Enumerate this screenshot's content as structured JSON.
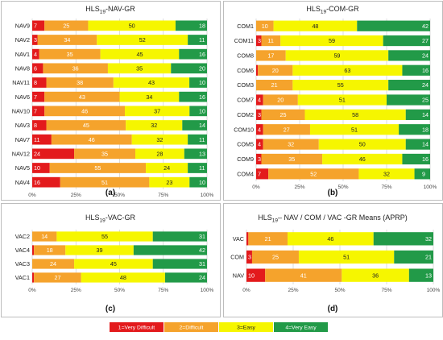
{
  "colors": {
    "very_difficult": "#e31a1c",
    "difficult": "#f5a32c",
    "easy": "#f6f600",
    "very_easy": "#229a48",
    "panel_border": "#bdbdbd",
    "grid": "#cfcfcf"
  },
  "legend": {
    "items": [
      {
        "label": "1=Very Difficult",
        "key": "very_difficult"
      },
      {
        "label": "2=Difficult",
        "key": "difficult"
      },
      {
        "label": "3=Easy",
        "key": "easy"
      },
      {
        "label": "4=Very Easy",
        "key": "very_easy"
      }
    ]
  },
  "chart_data": [
    {
      "type": "bar",
      "stacked": "horizontal-100%",
      "panel_letter": "(a)",
      "title_parts": [
        "HLS",
        "19",
        "-NAV-GR"
      ],
      "categories": [
        "NAV9",
        "NAV2",
        "NAV1",
        "NAV8",
        "NAV11",
        "NAV6",
        "NAV10",
        "NAV3",
        "NAV7",
        "NAV12",
        "NAV5",
        "NAV4"
      ],
      "series": [
        {
          "name": "1=Very Difficult",
          "values": [
            7,
            3,
            4,
            6,
            8,
            7,
            7,
            8,
            11,
            24,
            10,
            16
          ]
        },
        {
          "name": "2=Difficult",
          "values": [
            25,
            34,
            35,
            36,
            38,
            43,
            46,
            45,
            46,
            35,
            55,
            51
          ]
        },
        {
          "name": "3=Easy",
          "values": [
            50,
            52,
            45,
            35,
            43,
            34,
            37,
            32,
            32,
            28,
            24,
            23
          ]
        },
        {
          "name": "4=Very Easy",
          "values": [
            18,
            11,
            16,
            20,
            10,
            16,
            10,
            14,
            11,
            13,
            11,
            10
          ]
        }
      ],
      "xticks": [
        "0%",
        "25%",
        "50%",
        "75%",
        "100%"
      ],
      "xlim": [
        0,
        100
      ]
    },
    {
      "type": "bar",
      "stacked": "horizontal-100%",
      "panel_letter": "(b)",
      "title_parts": [
        "HLS",
        "19",
        "-COM-GR"
      ],
      "categories": [
        "COM1",
        "COM11",
        "COM8",
        "COM6",
        "COM3",
        "COM7",
        "COM2",
        "COM10",
        "COM5",
        "COM9",
        "COM4"
      ],
      "series": [
        {
          "name": "1=Very Difficult",
          "values": [
            0,
            3,
            0,
            1,
            0,
            4,
            3,
            4,
            4,
            3,
            7
          ]
        },
        {
          "name": "2=Difficult",
          "values": [
            10,
            11,
            17,
            20,
            21,
            20,
            25,
            27,
            32,
            35,
            52
          ]
        },
        {
          "name": "3=Easy",
          "values": [
            48,
            59,
            59,
            63,
            55,
            51,
            58,
            51,
            50,
            46,
            32
          ]
        },
        {
          "name": "4=Very Easy",
          "values": [
            42,
            27,
            24,
            16,
            24,
            25,
            14,
            18,
            14,
            16,
            9
          ]
        }
      ],
      "xticks": [
        "0%",
        "25%",
        "50%",
        "75%",
        "100%"
      ],
      "xlim": [
        0,
        100
      ]
    },
    {
      "type": "bar",
      "stacked": "horizontal-100%",
      "panel_letter": "(c)",
      "title_parts": [
        "HLS",
        "19",
        "-VAC-GR"
      ],
      "categories": [
        "VAC2",
        "VAC4",
        "VAC3",
        "VAC1"
      ],
      "series": [
        {
          "name": "1=Very Difficult",
          "values": [
            0,
            1,
            0,
            1
          ]
        },
        {
          "name": "2=Difficult",
          "values": [
            14,
            18,
            24,
            27
          ]
        },
        {
          "name": "3=Easy",
          "values": [
            55,
            39,
            45,
            48
          ]
        },
        {
          "name": "4=Very Easy",
          "values": [
            31,
            42,
            31,
            24
          ]
        }
      ],
      "xticks": [
        "0%",
        "25%",
        "50%",
        "75%",
        "100%"
      ],
      "xlim": [
        0,
        100
      ]
    },
    {
      "type": "bar",
      "stacked": "horizontal-100%",
      "panel_letter": "(d)",
      "title_parts": [
        "HLS",
        "19",
        "– NAV / COM / VAC -GR Means (APRP)"
      ],
      "categories": [
        "VAC",
        "COM",
        "NAV"
      ],
      "series": [
        {
          "name": "1=Very Difficult",
          "values": [
            1,
            3,
            10
          ]
        },
        {
          "name": "2=Difficult",
          "values": [
            21,
            25,
            41
          ]
        },
        {
          "name": "3=Easy",
          "values": [
            46,
            51,
            36
          ]
        },
        {
          "name": "4=Very Easy",
          "values": [
            32,
            21,
            13
          ]
        }
      ],
      "xticks": [
        "0%",
        "25%",
        "50%",
        "75%",
        "100%"
      ],
      "xlim": [
        0,
        100
      ]
    }
  ]
}
